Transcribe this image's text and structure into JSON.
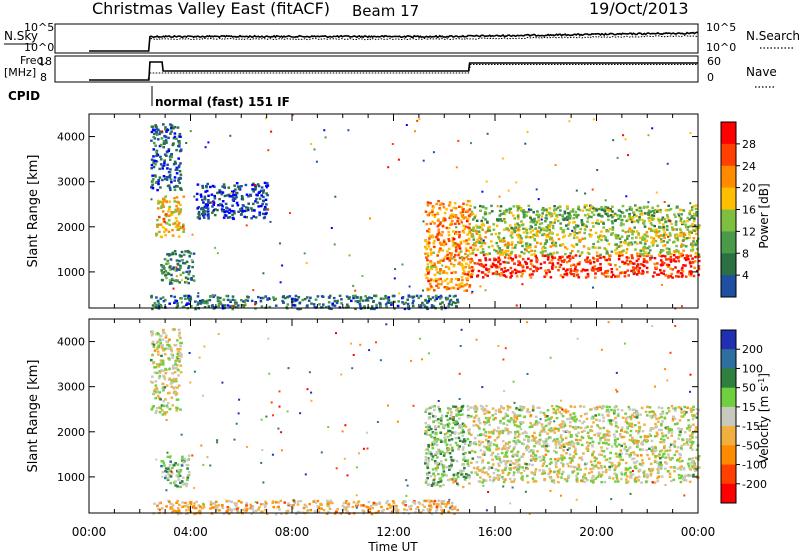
{
  "header": {
    "title": "Christmas Valley East (fitACF)",
    "beam": "Beam 17",
    "date": "19/Oct/2013"
  },
  "strip_nsky": {
    "left_label": "N.Sky",
    "left_ticks": [
      "10^5",
      "10^0"
    ],
    "right_ticks": [
      "10^5",
      "10^0"
    ],
    "right_label": "N.Search"
  },
  "strip_freq": {
    "left_label_1": "Freq.",
    "left_label_2": "[MHz]",
    "left_ticks": [
      "18",
      "8"
    ],
    "right_ticks": [
      "60",
      "0"
    ],
    "right_label": "Nave"
  },
  "cpid": {
    "label": "CPID",
    "mode": "normal (fast) 151 IF"
  },
  "colors": {
    "power": [
      "#0000ff",
      "#1f4fa0",
      "#2a7040",
      "#4a9a4a",
      "#7fbf3f",
      "#ffbf00",
      "#ff8c00",
      "#ff4000",
      "#ff0000"
    ],
    "velocity": [
      "#2030b0",
      "#2f6f9f",
      "#2f7f3f",
      "#6fcf3f",
      "#c8c8bc",
      "#f0b040",
      "#ff8c00",
      "#ff4000",
      "#ff0000"
    ]
  },
  "chart_data": [
    {
      "type": "heatmap",
      "panel": "power",
      "ylabel": "Slant Range [km]",
      "yticks": [
        1000,
        2000,
        3000,
        4000
      ],
      "ylim": [
        200,
        4500
      ],
      "xlim": [
        0,
        24
      ],
      "colorbar": {
        "label": "Power [dB]",
        "ticks": [
          "4",
          "8",
          "12",
          "16",
          "20",
          "24",
          "28"
        ],
        "range": [
          0,
          32
        ]
      },
      "features": [
        {
          "t0": 2.4,
          "t1": 3.6,
          "r0": 2800,
          "r1": 4300,
          "level": 0.2
        },
        {
          "t0": 2.6,
          "t1": 3.7,
          "r0": 1800,
          "r1": 2700,
          "level": 0.62
        },
        {
          "t0": 2.8,
          "t1": 4.1,
          "r0": 750,
          "r1": 1500,
          "level": 0.3
        },
        {
          "t0": 4.2,
          "t1": 7.0,
          "r0": 2200,
          "r1": 3000,
          "level": 0.12
        },
        {
          "t0": 13.2,
          "t1": 15.0,
          "r0": 600,
          "r1": 2600,
          "level": 0.72
        },
        {
          "t0": 15.0,
          "t1": 24.0,
          "r0": 900,
          "r1": 1400,
          "level": 0.9
        },
        {
          "t0": 15.0,
          "t1": 24.0,
          "r0": 1400,
          "r1": 2000,
          "level": 0.55
        },
        {
          "t0": 15.0,
          "t1": 24.0,
          "r0": 2000,
          "r1": 2500,
          "level": 0.45
        },
        {
          "t0": 2.4,
          "t1": 14.5,
          "r0": 200,
          "r1": 500,
          "level": 0.25
        }
      ]
    },
    {
      "type": "heatmap",
      "panel": "velocity",
      "ylabel": "Slant Range [km]",
      "xlabel": "Time UT",
      "xticks": [
        "00:00",
        "04:00",
        "08:00",
        "12:00",
        "16:00",
        "20:00",
        "00:00"
      ],
      "yticks": [
        1000,
        2000,
        3000,
        4000
      ],
      "ylim": [
        200,
        4500
      ],
      "xlim": [
        0,
        24
      ],
      "colorbar": {
        "label_main": "Velocity [m s",
        "label_sup": "-1",
        "label_end": "]",
        "ticks": [
          "200",
          "100",
          "50",
          "15",
          "-15",
          "-50",
          "-100",
          "-200"
        ]
      },
      "features": [
        {
          "t0": 2.4,
          "t1": 3.6,
          "r0": 2400,
          "r1": 4300,
          "level": 0.5
        },
        {
          "t0": 2.8,
          "t1": 3.9,
          "r0": 800,
          "r1": 1500,
          "level": 0.38
        },
        {
          "t0": 13.2,
          "t1": 15.0,
          "r0": 800,
          "r1": 2600,
          "level": 0.4
        },
        {
          "t0": 15.0,
          "t1": 24.0,
          "r0": 900,
          "r1": 2600,
          "level": 0.5
        },
        {
          "t0": 2.4,
          "t1": 14.5,
          "r0": 200,
          "r1": 500,
          "level": 0.62
        }
      ]
    }
  ]
}
